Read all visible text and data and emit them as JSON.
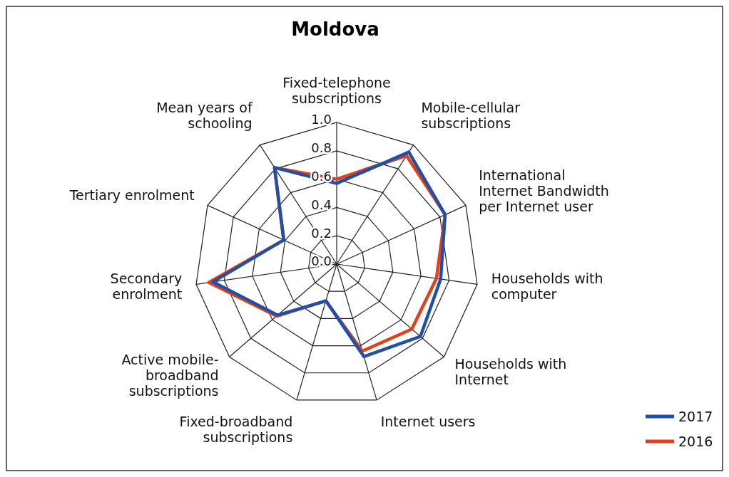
{
  "chart_data": {
    "type": "radar",
    "title": "Moldova",
    "categories": [
      "Fixed-telephone subscriptions",
      "Mobile-cellular subscriptions",
      "International Internet Bandwidth per Internet user",
      "Households with computer",
      "Households with Internet",
      "Internet users",
      "Fixed-broadband subscriptions",
      "Active mobile-broadband subscriptions",
      "Secondary enrolment",
      "Tertiary enrolment",
      "Mean years of schooling"
    ],
    "series": [
      {
        "name": "2017",
        "color": "#1f4fa8",
        "values": [
          0.57,
          0.94,
          0.84,
          0.74,
          0.78,
          0.68,
          0.27,
          0.55,
          0.88,
          0.41,
          0.81
        ]
      },
      {
        "name": "2016",
        "color": "#e2401c",
        "values": [
          0.6,
          0.91,
          0.84,
          0.71,
          0.7,
          0.64,
          0.27,
          0.56,
          0.91,
          0.41,
          0.81
        ]
      }
    ],
    "ylim": [
      0,
      1
    ],
    "yticks": [
      {
        "value": 0,
        "label": "0.0"
      },
      0.2,
      0.4,
      0.6,
      0.8,
      {
        "value": 1,
        "label": "1.0"
      }
    ],
    "grid": true,
    "legend": "bottom right"
  }
}
